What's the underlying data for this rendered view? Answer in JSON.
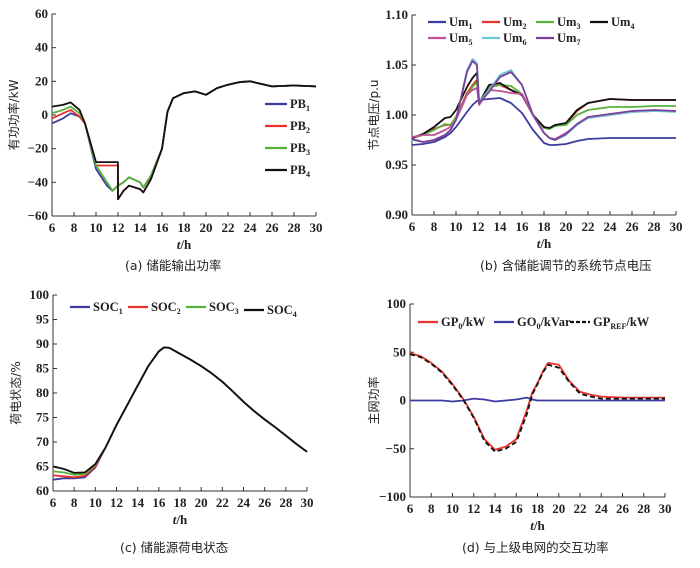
{
  "chart_data": [
    {
      "id": "a",
      "type": "line",
      "caption": "(a) 储能输出功率",
      "xlabel_italic": "t",
      "xlabel_unit": "/h",
      "ylabel": "有功功率/kW",
      "xlim": [
        6,
        30
      ],
      "ylim": [
        -60,
        60
      ],
      "xticks": [
        6,
        8,
        10,
        12,
        14,
        16,
        18,
        20,
        22,
        24,
        26,
        28,
        30
      ],
      "yticks": [
        -60,
        -40,
        -20,
        0,
        20,
        40,
        60
      ],
      "ytick_decimals": 0,
      "x": [
        6,
        7,
        7.7,
        8.5,
        9,
        10,
        11,
        11.5,
        11.99,
        12,
        12.5,
        13,
        14,
        14.3,
        15,
        16,
        16.5,
        17,
        18,
        19,
        20,
        21,
        22,
        23,
        24,
        25,
        26,
        28,
        30
      ],
      "series": [
        {
          "name": "PB",
          "sub": "1",
          "color": "#3b3ba0",
          "values": [
            -5,
            -2,
            1,
            -1,
            -5,
            -32,
            -42,
            -45,
            -42,
            -42,
            -40,
            -37,
            -40,
            -43,
            -36,
            -20,
            2,
            10,
            13,
            14,
            12,
            16,
            18,
            19.5,
            20,
            18.5,
            17,
            17.5,
            17
          ]
        },
        {
          "name": "PB",
          "sub": "2",
          "color": "#e8322b",
          "values": [
            -2,
            1,
            3,
            -1,
            -5,
            -30,
            -30,
            -30,
            -30,
            -50,
            -45,
            -42,
            -44,
            -46,
            -38,
            -20,
            2,
            10,
            13,
            14,
            12,
            16,
            18,
            19.5,
            20,
            18.5,
            17,
            17.5,
            17
          ]
        },
        {
          "name": "PB",
          "sub": "3",
          "color": "#58b23a",
          "values": [
            1,
            3,
            5,
            1,
            -5,
            -30,
            -40,
            -45,
            -42,
            -42,
            -40,
            -37,
            -40,
            -43,
            -36,
            -20,
            2,
            10,
            13,
            14,
            12,
            16,
            18,
            19.5,
            20,
            18.5,
            17,
            17.5,
            17
          ]
        },
        {
          "name": "PB",
          "sub": "4",
          "color": "#111111",
          "values": [
            5,
            6,
            7.5,
            3,
            -5,
            -28,
            -28,
            -28,
            -28,
            -50,
            -45,
            -42,
            -44,
            -46,
            -38,
            -20,
            2,
            10,
            13,
            14,
            12,
            16,
            18,
            19.5,
            20,
            18.5,
            17,
            17.5,
            17
          ]
        }
      ],
      "legend": "right"
    },
    {
      "id": "b",
      "type": "line",
      "caption": "(b) 含储能调节的系统节点电压",
      "xlabel_italic": "t",
      "xlabel_unit": "/h",
      "ylabel": "节点电压/p.u",
      "xlim": [
        6,
        30
      ],
      "ylim": [
        0.9,
        1.1
      ],
      "xticks": [
        6,
        8,
        10,
        12,
        14,
        16,
        18,
        20,
        22,
        24,
        26,
        28,
        30
      ],
      "yticks": [
        0.9,
        0.95,
        1.0,
        1.05,
        1.1
      ],
      "ytick_decimals": 2,
      "x": [
        6,
        7,
        8,
        9,
        9.5,
        10,
        11,
        11.5,
        11.9,
        12.1,
        13,
        14,
        15,
        16,
        17,
        18,
        18.5,
        19,
        20,
        21,
        22,
        24,
        26,
        28,
        30
      ],
      "series": [
        {
          "name": "Um",
          "sub": "1",
          "color": "#3b3ba0",
          "values": [
            0.97,
            0.971,
            0.973,
            0.978,
            0.982,
            0.988,
            1.003,
            1.01,
            1.014,
            1.015,
            1.016,
            1.017,
            1.012,
            1.002,
            0.985,
            0.972,
            0.97,
            0.97,
            0.971,
            0.974,
            0.976,
            0.977,
            0.977,
            0.977,
            0.977
          ]
        },
        {
          "name": "Um",
          "sub": "2",
          "color": "#e8322b",
          "values": [
            0.977,
            0.981,
            0.986,
            0.99,
            0.99,
            0.998,
            1.022,
            1.03,
            1.035,
            1.012,
            1.028,
            1.03,
            1.025,
            1.02,
            1.0,
            0.987,
            0.987,
            0.989,
            0.991,
            1.004,
            1.012,
            1.016,
            1.015,
            1.015,
            1.015
          ]
        },
        {
          "name": "Um",
          "sub": "3",
          "color": "#58b23a",
          "values": [
            0.977,
            0.98,
            0.985,
            0.991,
            0.99,
            0.998,
            1.02,
            1.028,
            1.033,
            1.012,
            1.028,
            1.03,
            1.029,
            1.021,
            1.0,
            0.987,
            0.986,
            0.989,
            0.99,
            1.0,
            1.005,
            1.008,
            1.008,
            1.009,
            1.009
          ]
        },
        {
          "name": "Um",
          "sub": "4",
          "color": "#111111",
          "values": [
            0.977,
            0.981,
            0.988,
            0.997,
            0.998,
            1.005,
            1.028,
            1.037,
            1.042,
            1.012,
            1.03,
            1.032,
            1.025,
            1.02,
            1.0,
            0.988,
            0.987,
            0.99,
            0.992,
            1.005,
            1.012,
            1.016,
            1.015,
            1.015,
            1.015
          ]
        },
        {
          "name": "Um",
          "sub": "5",
          "color": "#c0509a",
          "values": [
            0.978,
            0.98,
            0.98,
            0.985,
            0.988,
            0.995,
            1.02,
            1.025,
            1.027,
            1.01,
            1.025,
            1.024,
            1.022,
            1.021,
            1.0,
            0.982,
            0.977,
            0.976,
            0.982,
            0.99,
            0.997,
            1.0,
            1.003,
            1.004,
            1.004
          ]
        },
        {
          "name": "Um",
          "sub": "6",
          "color": "#6cc9d6",
          "values": [
            0.975,
            0.973,
            0.975,
            0.98,
            0.985,
            0.995,
            1.045,
            1.056,
            1.052,
            1.013,
            1.025,
            1.04,
            1.045,
            1.03,
            1.0,
            0.982,
            0.977,
            0.975,
            0.98,
            0.99,
            0.997,
            1.0,
            1.003,
            1.004,
            1.003
          ]
        },
        {
          "name": "Um",
          "sub": "7",
          "color": "#7e3f9a",
          "values": [
            0.976,
            0.973,
            0.975,
            0.98,
            0.985,
            0.995,
            1.043,
            1.054,
            1.05,
            1.012,
            1.023,
            1.038,
            1.043,
            1.03,
            1.0,
            0.982,
            0.977,
            0.975,
            0.981,
            0.991,
            0.998,
            1.001,
            1.004,
            1.005,
            1.004
          ]
        }
      ],
      "legend": "top"
    },
    {
      "id": "c",
      "type": "line",
      "caption": "(c) 储能源荷电状态",
      "xlabel_italic": "t",
      "xlabel_unit": "/h",
      "ylabel": "荷电状态/%",
      "xlim": [
        6,
        30
      ],
      "ylim": [
        60,
        100
      ],
      "xticks": [
        6,
        8,
        10,
        12,
        14,
        16,
        18,
        20,
        22,
        24,
        26,
        28,
        30
      ],
      "yticks": [
        60,
        65,
        70,
        75,
        80,
        85,
        90,
        95,
        100
      ],
      "ytick_decimals": 0,
      "x": [
        6,
        7,
        8,
        9,
        10,
        11,
        12,
        13,
        14,
        15,
        16,
        16.5,
        17,
        18,
        19,
        20,
        21,
        22,
        23,
        24,
        25,
        26,
        27,
        28,
        29,
        30
      ],
      "series": [
        {
          "name": "SOC",
          "sub": "1",
          "color": "#3b3ba0",
          "values": [
            62.3,
            62.6,
            62.6,
            62.8,
            64.8,
            69,
            73.5,
            77.5,
            81.5,
            85.5,
            88.5,
            89.3,
            89.2,
            88,
            86.8,
            85.5,
            84,
            82.3,
            80.3,
            78.2,
            76.3,
            74.6,
            73,
            71.3,
            69.6,
            68
          ]
        },
        {
          "name": "SOC",
          "sub": "2",
          "color": "#e8322b",
          "values": [
            63.2,
            63,
            62.8,
            63.1,
            65.0,
            69,
            73.5,
            77.5,
            81.5,
            85.5,
            88.5,
            89.3,
            89.2,
            88,
            86.8,
            85.5,
            84,
            82.3,
            80.3,
            78.2,
            76.3,
            74.6,
            73,
            71.3,
            69.6,
            68
          ]
        },
        {
          "name": "SOC",
          "sub": "3",
          "color": "#58b23a",
          "values": [
            64,
            63.8,
            63.3,
            63.5,
            65.3,
            69,
            73.5,
            77.5,
            81.5,
            85.5,
            88.5,
            89.3,
            89.2,
            88,
            86.8,
            85.5,
            84,
            82.3,
            80.3,
            78.2,
            76.3,
            74.6,
            73,
            71.3,
            69.6,
            68
          ]
        },
        {
          "name": "SOC",
          "sub": "4",
          "color": "#111111",
          "values": [
            65,
            64.5,
            63.7,
            63.8,
            65.5,
            69,
            73.5,
            77.5,
            81.5,
            85.5,
            88.5,
            89.3,
            89.2,
            88,
            86.8,
            85.5,
            84,
            82.3,
            80.3,
            78.2,
            76.3,
            74.6,
            73,
            71.3,
            69.6,
            68
          ]
        }
      ],
      "legend": "top"
    },
    {
      "id": "d",
      "type": "line",
      "caption": "(d) 与上级电网的交互功率",
      "xlabel_italic": "t",
      "xlabel_unit": "/h",
      "ylabel": "主网功率",
      "xlim": [
        6,
        30
      ],
      "ylim": [
        -100,
        100
      ],
      "xticks": [
        6,
        8,
        10,
        12,
        14,
        16,
        18,
        20,
        22,
        24,
        26,
        28,
        30
      ],
      "yticks": [
        -100,
        -50,
        0,
        50,
        100
      ],
      "ytick_decimals": 0,
      "x": [
        6,
        7,
        8,
        9,
        10,
        11,
        12,
        13,
        14,
        15,
        16,
        17,
        17.5,
        18,
        18.5,
        19,
        20,
        21,
        22,
        23,
        24,
        26,
        28,
        30
      ],
      "series": [
        {
          "name": "GP",
          "sub": "0",
          "suffix": "/kW",
          "color": "#e8322b",
          "dashed": false,
          "values": [
            49,
            46,
            39,
            30,
            17,
            2,
            -17,
            -40,
            -51,
            -48,
            -40,
            -10,
            8,
            18,
            30,
            39,
            37,
            20,
            9,
            6,
            4,
            3,
            3,
            3
          ]
        },
        {
          "name": "GO",
          "sub": "0",
          "suffix": "/kVar",
          "color": "#3b3ba0",
          "dashed": false,
          "values": [
            0,
            0,
            0,
            0,
            -1,
            0,
            2,
            1,
            -1,
            0,
            1,
            3,
            1,
            0,
            0,
            0,
            0,
            0,
            0,
            0,
            0,
            0,
            0,
            0
          ]
        },
        {
          "name": "GP",
          "sub": "REF",
          "suffix": "/kW",
          "color": "#111111",
          "dashed": true,
          "values": [
            48,
            45,
            38,
            29,
            16,
            1,
            -18,
            -42,
            -53,
            -50,
            -43,
            -14,
            6,
            17,
            29,
            37,
            34,
            19,
            7,
            4,
            2,
            2,
            2,
            2
          ]
        }
      ],
      "legend": "top"
    }
  ]
}
